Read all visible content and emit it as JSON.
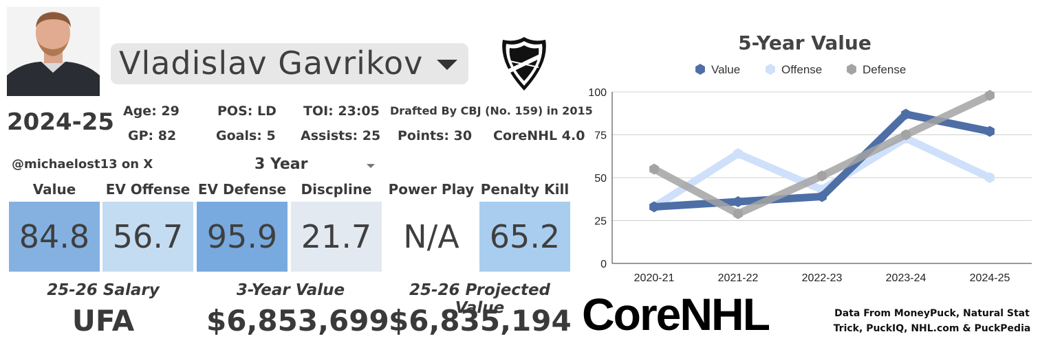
{
  "player": {
    "name": "Vladislav Gavrikov",
    "season": "2024-25"
  },
  "stats": {
    "age": "Age: 29",
    "pos": "POS: LD",
    "toi": "TOI: 23:05",
    "drafted": "Drafted By CBJ (No. 159) in 2015",
    "gp": "GP: 82",
    "goals": "Goals: 5",
    "assists": "Assists: 25",
    "points": "Points: 30",
    "version": "CoreNHL 4.0"
  },
  "handle": "@michaelost13 on X",
  "period": "3 Year",
  "categories": [
    {
      "label": "Value",
      "value": "84.8",
      "color": "#85b1e1"
    },
    {
      "label": "EV Offense",
      "value": "56.7",
      "color": "#c4dcf2"
    },
    {
      "label": "EV Defense",
      "value": "95.9",
      "color": "#78aadf"
    },
    {
      "label": "Discpline",
      "value": "21.7",
      "color": "#e3e9f1"
    },
    {
      "label": "Power Play",
      "value": "N/A",
      "color": "#ffffff"
    },
    {
      "label": "Penalty Kill",
      "value": "65.2",
      "color": "#a9cdee"
    }
  ],
  "summary": {
    "salary_label": "25-26 Salary",
    "salary_value": "UFA",
    "value3_label": "3-Year Value",
    "value3_value": "$6,853,699",
    "proj_label": "25-26 Projected Value",
    "proj_value": "$6,835,194"
  },
  "brand": {
    "logo_text": "CoreNHL",
    "source_line1": "Data From MoneyPuck, Natural Stat",
    "source_line2": "Trick, PuckIQ, NHL.com & PuckPedia"
  },
  "chart_data": {
    "type": "line",
    "title": "5-Year Value",
    "categories": [
      "2020-21",
      "2021-22",
      "2022-23",
      "2023-24",
      "2024-25"
    ],
    "ylim": [
      0,
      100
    ],
    "yticks": [
      0,
      25,
      50,
      75,
      100
    ],
    "grid": true,
    "legend_position": "top",
    "series": [
      {
        "name": "Value",
        "values": [
          33,
          36,
          39,
          87,
          77
        ],
        "color": "#4e6ea6"
      },
      {
        "name": "Offense",
        "values": [
          33,
          64,
          43,
          73,
          50
        ],
        "color": "#cfe0fa"
      },
      {
        "name": "Defense",
        "values": [
          55,
          29,
          51,
          75,
          98
        ],
        "color": "#a3a3a3"
      }
    ]
  }
}
